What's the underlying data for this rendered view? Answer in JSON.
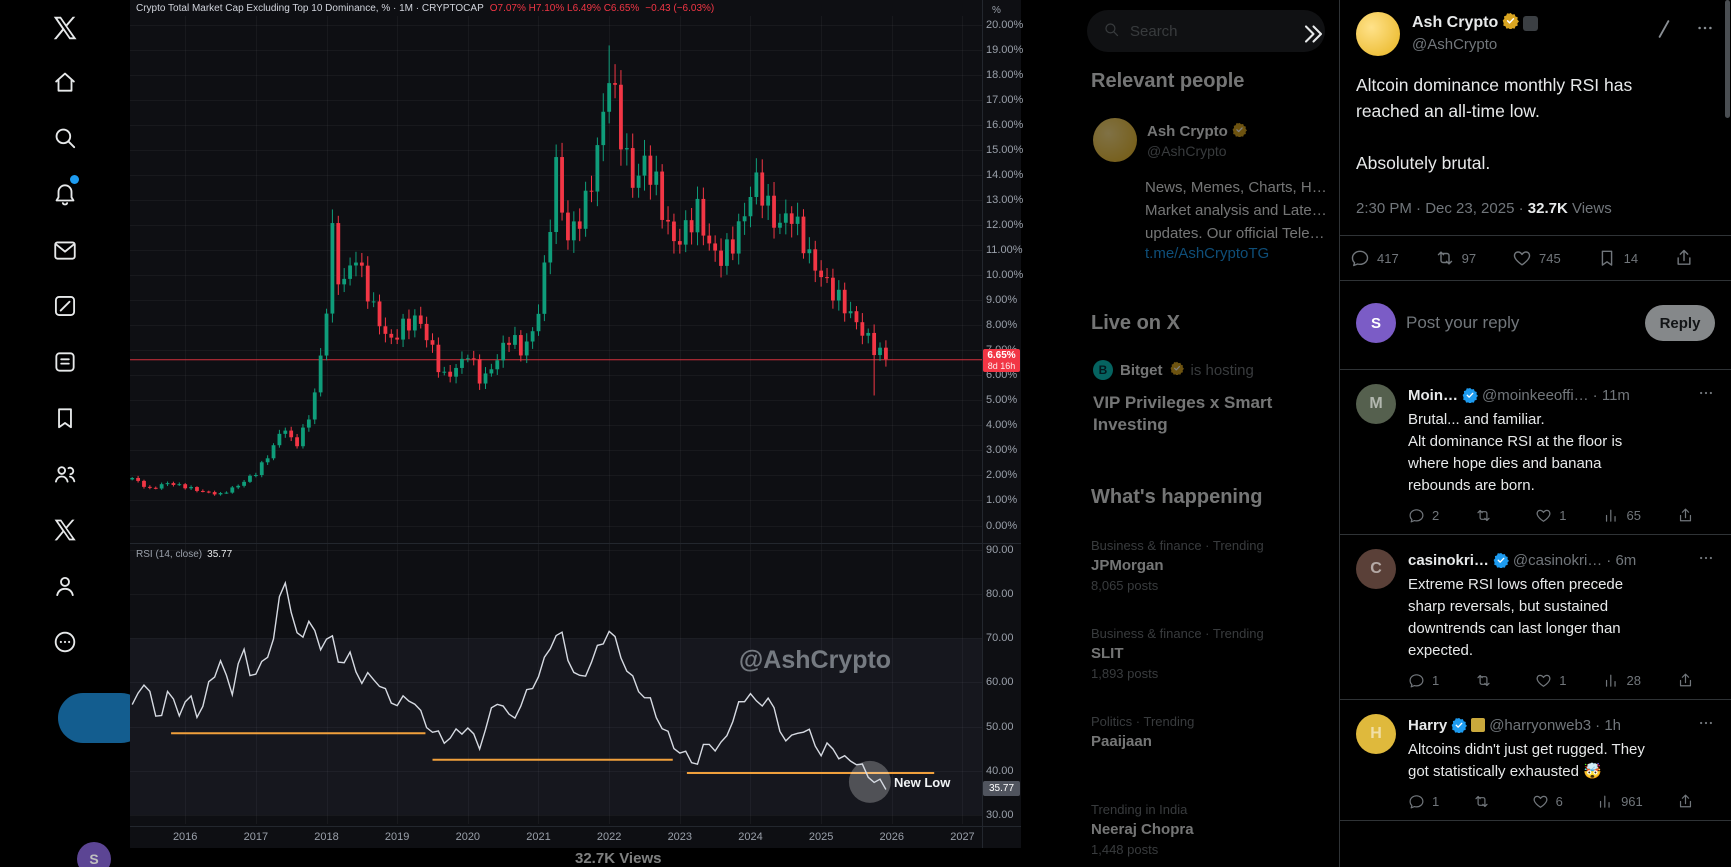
{
  "theme": {
    "accent": "#1d9bf0",
    "gold": "#d9a521",
    "up": "#0f9d7a",
    "down": "#f23645"
  },
  "nav": {
    "items": [
      {
        "icon": "home",
        "name": "home"
      },
      {
        "icon": "search",
        "name": "explore"
      },
      {
        "icon": "bell",
        "name": "notifications",
        "badge": true
      },
      {
        "icon": "mail",
        "name": "messages"
      },
      {
        "icon": "grok",
        "name": "grok"
      },
      {
        "icon": "lists",
        "name": "lists"
      },
      {
        "icon": "bookmark",
        "name": "bookmarks"
      },
      {
        "icon": "people",
        "name": "communities"
      },
      {
        "icon": "xlogo",
        "name": "premium"
      },
      {
        "icon": "person",
        "name": "profile"
      },
      {
        "icon": "more",
        "name": "more"
      }
    ],
    "user_initial": "S"
  },
  "search": {
    "placeholder": "Search"
  },
  "relevant": {
    "heading": "Relevant people",
    "name": "Ash Crypto",
    "handle": "@AshCrypto",
    "bio": "News, Memes, Charts, H…\nMarket analysis and Late…\nupdates. Our official Tele…",
    "link": "t.me/AshCryptoTG"
  },
  "live": {
    "heading": "Live on X",
    "host": "Bitget",
    "suffix": " is hosting",
    "title": "VIP Privileges x Smart\nInvesting"
  },
  "trends": {
    "heading": "What's happening",
    "items": [
      {
        "meta": "Business & finance · Trending",
        "title": "JPMorgan",
        "posts": "8,065 posts"
      },
      {
        "meta": "Business & finance · Trending",
        "title": "SLIT",
        "posts": "1,893 posts"
      },
      {
        "meta": "Politics · Trending",
        "title": "Paaijaan",
        "posts": ""
      },
      {
        "meta": "Trending in India",
        "title": "Neeraj Chopra",
        "posts": "1,448 posts"
      }
    ]
  },
  "tweet": {
    "name": "Ash Crypto",
    "handle": "@AshCrypto",
    "text": "Altcoin dominance monthly RSI has\nreached an all-time low.\n\nAbsolutely brutal.",
    "meta_prefix": "2:30 PM · Dec 23, 2025 · ",
    "views": "32.7K",
    "views_label": " Views",
    "actions": {
      "replies": "417",
      "reposts": "97",
      "likes": "745",
      "bookmarks": "14"
    }
  },
  "composer": {
    "placeholder": "Post your reply",
    "button": "Reply",
    "avatar_initial": "S"
  },
  "replies": [
    {
      "name": "Moin…",
      "handle": "@moinkeeoffi…",
      "time": "· 11m",
      "text": "Brutal... and familiar.\nAlt dominance RSI at the floor is\nwhere hope dies and banana\nrebounds are born.",
      "replies": "2",
      "reposts": "",
      "likes": "1",
      "views": "65",
      "avatar_color": "#55604e",
      "avatar_initial": "M",
      "extra_badge": false
    },
    {
      "name": "casinokri…",
      "handle": "@casinokri…",
      "time": "· 6m",
      "text": "Extreme RSI lows often precede\nsharp reversals, but sustained\ndowntrends can last longer than\nexpected.",
      "replies": "1",
      "reposts": "",
      "likes": "1",
      "views": "28",
      "avatar_color": "#5a4038",
      "avatar_initial": "C",
      "extra_badge": false
    },
    {
      "name": "Harry",
      "handle": "@harryonweb3",
      "time": "· 1h",
      "text": "Altcoins didn't just get rugged. They\ngot statistically exhausted 🤯",
      "replies": "1",
      "reposts": "",
      "likes": "6",
      "views": "961",
      "avatar_color": "#dfb93c",
      "avatar_initial": "H",
      "extra_badge": true
    }
  ],
  "under_stats": "32.7K Views",
  "chart": {
    "title": "Crypto Total Market Cap Excluding Top 10 Dominance, % · 1M · CRYPTOCAP",
    "ohlc": "O7.07%  H7.10%  L6.49%  C6.65%",
    "change": "−0.43 (−6.03%)",
    "price_label": "6.65%",
    "countdown": "8d 16h",
    "rsi_title": "RSI (14, close)",
    "rsi_value": "35.77",
    "watermark": "@AshCrypto",
    "new_low": "New Low",
    "pct": "%",
    "y_ticks": [
      "20.00%",
      "19.00%",
      "18.00%",
      "17.00%",
      "16.00%",
      "15.00%",
      "14.00%",
      "13.00%",
      "12.00%",
      "11.00%",
      "10.00%",
      "9.00%",
      "8.00%",
      "7.00%",
      "6.00%",
      "5.00%",
      "4.00%",
      "3.00%",
      "2.00%",
      "1.00%",
      "0.00%"
    ],
    "rsi_ticks": [
      "90.00",
      "80.00",
      "70.00",
      "60.00",
      "50.00",
      "40.00",
      "30.00"
    ],
    "years": [
      "2016",
      "2017",
      "2018",
      "2019",
      "2020",
      "2021",
      "2022",
      "2023",
      "2024",
      "2025",
      "2026",
      "2027"
    ]
  },
  "chart_data": {
    "type": "candlestick",
    "title": "Crypto Total Market Cap Excluding Top 10 Dominance (%) monthly with RSI(14)",
    "x_range": [
      2015.25,
      2027.0
    ],
    "price_ylim": [
      0,
      20
    ],
    "rsi_ylim": [
      30,
      90
    ],
    "last_close": 6.65,
    "last_rsi": 35.77,
    "price_anchors": [
      [
        2015.25,
        1.9
      ],
      [
        2015.5,
        1.45
      ],
      [
        2015.75,
        1.7
      ],
      [
        2016.0,
        1.55
      ],
      [
        2016.25,
        1.35
      ],
      [
        2016.5,
        1.25
      ],
      [
        2016.75,
        1.6
      ],
      [
        2017.0,
        2.1
      ],
      [
        2017.2,
        2.9
      ],
      [
        2017.4,
        4.0
      ],
      [
        2017.55,
        3.1
      ],
      [
        2017.75,
        4.3
      ],
      [
        2017.9,
        6.2
      ],
      [
        2018.0,
        8.8
      ],
      [
        2018.08,
        11.7
      ],
      [
        2018.2,
        9.3
      ],
      [
        2018.4,
        10.9
      ],
      [
        2018.55,
        9.6
      ],
      [
        2018.7,
        8.4
      ],
      [
        2018.9,
        7.3
      ],
      [
        2019.05,
        7.9
      ],
      [
        2019.3,
        8.3
      ],
      [
        2019.5,
        7.0
      ],
      [
        2019.65,
        5.9
      ],
      [
        2019.85,
        6.3
      ],
      [
        2020.0,
        6.9
      ],
      [
        2020.2,
        5.7
      ],
      [
        2020.4,
        6.6
      ],
      [
        2020.6,
        7.6
      ],
      [
        2020.75,
        7.0
      ],
      [
        2020.9,
        7.5
      ],
      [
        2021.05,
        9.3
      ],
      [
        2021.25,
        14.3
      ],
      [
        2021.4,
        11.4
      ],
      [
        2021.55,
        12.1
      ],
      [
        2021.7,
        13.1
      ],
      [
        2021.85,
        15.2
      ],
      [
        2022.0,
        18.1
      ],
      [
        2022.1,
        16.8
      ],
      [
        2022.2,
        15.1
      ],
      [
        2022.35,
        13.6
      ],
      [
        2022.5,
        14.5
      ],
      [
        2022.65,
        13.8
      ],
      [
        2022.8,
        12.1
      ],
      [
        2022.95,
        11.2
      ],
      [
        2023.1,
        11.9
      ],
      [
        2023.25,
        12.6
      ],
      [
        2023.4,
        11.3
      ],
      [
        2023.55,
        10.6
      ],
      [
        2023.75,
        11.3
      ],
      [
        2023.9,
        12.3
      ],
      [
        2024.0,
        13.3
      ],
      [
        2024.1,
        13.8
      ],
      [
        2024.25,
        12.7
      ],
      [
        2024.4,
        11.9
      ],
      [
        2024.55,
        12.6
      ],
      [
        2024.7,
        11.7
      ],
      [
        2024.85,
        10.6
      ],
      [
        2025.0,
        10.0
      ],
      [
        2025.15,
        9.4
      ],
      [
        2025.3,
        8.9
      ],
      [
        2025.45,
        8.3
      ],
      [
        2025.6,
        7.7
      ],
      [
        2025.75,
        7.1
      ],
      [
        2025.92,
        6.65
      ]
    ],
    "special_wicks": {
      "high_2018_08": 12.45,
      "high_2022_00": 19.2,
      "low_2025_75": 5.2
    },
    "rsi_anchors": [
      [
        2015.3,
        55
      ],
      [
        2015.45,
        62
      ],
      [
        2015.6,
        50
      ],
      [
        2015.75,
        58
      ],
      [
        2015.9,
        53
      ],
      [
        2016.05,
        57
      ],
      [
        2016.2,
        52
      ],
      [
        2016.35,
        60
      ],
      [
        2016.5,
        65
      ],
      [
        2016.65,
        57
      ],
      [
        2016.8,
        68
      ],
      [
        2016.95,
        61
      ],
      [
        2017.1,
        64
      ],
      [
        2017.25,
        70
      ],
      [
        2017.4,
        85
      ],
      [
        2017.5,
        76
      ],
      [
        2017.6,
        69
      ],
      [
        2017.75,
        74
      ],
      [
        2017.9,
        68
      ],
      [
        2018.05,
        71
      ],
      [
        2018.2,
        64
      ],
      [
        2018.35,
        66
      ],
      [
        2018.5,
        60
      ],
      [
        2018.65,
        62
      ],
      [
        2018.8,
        58
      ],
      [
        2019.0,
        55
      ],
      [
        2019.2,
        57
      ],
      [
        2019.35,
        52
      ],
      [
        2019.5,
        49
      ],
      [
        2019.65,
        47
      ],
      [
        2019.8,
        48
      ],
      [
        2020.0,
        50
      ],
      [
        2020.15,
        45
      ],
      [
        2020.3,
        52
      ],
      [
        2020.45,
        57
      ],
      [
        2020.6,
        51
      ],
      [
        2020.75,
        55
      ],
      [
        2020.9,
        59
      ],
      [
        2021.05,
        63
      ],
      [
        2021.2,
        70
      ],
      [
        2021.3,
        72
      ],
      [
        2021.45,
        64
      ],
      [
        2021.6,
        60
      ],
      [
        2021.75,
        65
      ],
      [
        2021.9,
        69
      ],
      [
        2022.0,
        72
      ],
      [
        2022.15,
        67
      ],
      [
        2022.3,
        61
      ],
      [
        2022.45,
        58
      ],
      [
        2022.6,
        55
      ],
      [
        2022.75,
        50
      ],
      [
        2022.9,
        46
      ],
      [
        2023.1,
        43
      ],
      [
        2023.25,
        42
      ],
      [
        2023.4,
        47
      ],
      [
        2023.55,
        44
      ],
      [
        2023.7,
        50
      ],
      [
        2023.85,
        55
      ],
      [
        2024.0,
        58
      ],
      [
        2024.1,
        54
      ],
      [
        2024.25,
        57
      ],
      [
        2024.4,
        50
      ],
      [
        2024.55,
        46
      ],
      [
        2024.7,
        50
      ],
      [
        2024.85,
        48
      ],
      [
        2025.0,
        44
      ],
      [
        2025.15,
        46
      ],
      [
        2025.3,
        42
      ],
      [
        2025.45,
        43
      ],
      [
        2025.6,
        40
      ],
      [
        2025.75,
        38
      ],
      [
        2025.92,
        35.77
      ]
    ],
    "support_lines": [
      [
        2015.8,
        2019.4,
        48.5
      ],
      [
        2019.5,
        2022.9,
        42.5
      ],
      [
        2023.1,
        2026.6,
        39.5
      ]
    ]
  }
}
